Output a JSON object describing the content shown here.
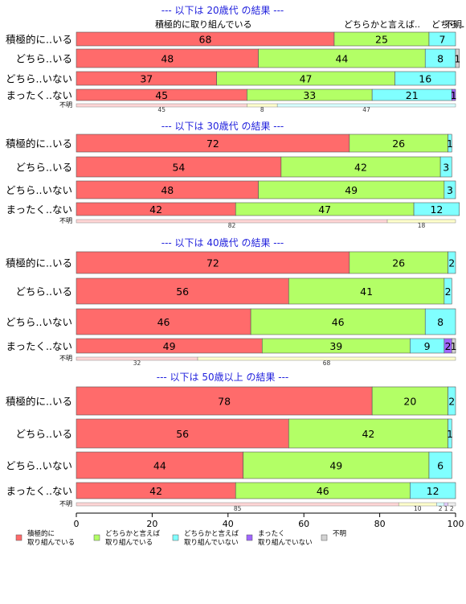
{
  "chart_data": {
    "type": "bar",
    "stacked": true,
    "orientation": "horizontal",
    "xlim": [
      0,
      100
    ],
    "x_ticks": [
      "0",
      "20",
      "40",
      "60",
      "80",
      "100"
    ],
    "series_names": [
      "積極的に取り組んでいる",
      "どちらかと言えば取り組んでいる",
      "どちらかと言えば取り組んでいない",
      "まったく取り組んでいない",
      "不明"
    ],
    "colors": [
      "#ff6b6b",
      "#b3ff66",
      "#80ffff",
      "#a066ff",
      "#d3d3d3"
    ],
    "header_labels": [
      "積極的に取り組んでいる",
      "どちらかと言えば..",
      "どちら..",
      "不明."
    ],
    "legend": [
      {
        "line1": "積極的に",
        "line2": "取り組んでいる",
        "color": "#ff6b6b"
      },
      {
        "line1": "どちらかと言えば",
        "line2": "取り組んでいる",
        "color": "#b3ff66"
      },
      {
        "line1": "どちらかと言えば",
        "line2": "取り組んでいない",
        "color": "#80ffff"
      },
      {
        "line1": "まったく",
        "line2": "取り組んでいない",
        "color": "#a066ff"
      },
      {
        "line1": "不明",
        "line2": "",
        "color": "#d3d3d3"
      }
    ],
    "panels": [
      {
        "title": "--- 以下は 20歳代 の結果 ---",
        "rows": [
          {
            "label": "積極的に..いる",
            "values": [
              68,
              25,
              7,
              0,
              0
            ]
          },
          {
            "label": "どちら..いる",
            "values": [
              48,
              44,
              8,
              0,
              1
            ]
          },
          {
            "label": "どちら..いない",
            "values": [
              37,
              47,
              16,
              0,
              0
            ]
          },
          {
            "label": "まったく..ない",
            "values": [
              45,
              33,
              21,
              1,
              0
            ]
          }
        ],
        "unknown": {
          "label": "不明",
          "values": [
            45,
            8,
            47
          ]
        }
      },
      {
        "title": "--- 以下は 30歳代 の結果 ---",
        "rows": [
          {
            "label": "積極的に..いる",
            "values": [
              72,
              26,
              1,
              0,
              0
            ]
          },
          {
            "label": "どちら..いる",
            "values": [
              54,
              42,
              3,
              0,
              0
            ]
          },
          {
            "label": "どちら..いない",
            "values": [
              48,
              49,
              3,
              0,
              0
            ]
          },
          {
            "label": "まったく..ない",
            "values": [
              42,
              47,
              12,
              0,
              0
            ]
          }
        ],
        "unknown": {
          "label": "不明",
          "values": [
            82,
            18
          ]
        }
      },
      {
        "title": "--- 以下は 40歳代 の結果 ---",
        "rows": [
          {
            "label": "積極的に..いる",
            "values": [
              72,
              26,
              2,
              0,
              0
            ]
          },
          {
            "label": "どちら..いる",
            "values": [
              56,
              41,
              2,
              0,
              0
            ]
          },
          {
            "label": "どちら..いない",
            "values": [
              46,
              46,
              8,
              0,
              0
            ]
          },
          {
            "label": "まったく..ない",
            "values": [
              49,
              39,
              9,
              2,
              1
            ]
          }
        ],
        "unknown": {
          "label": "不明",
          "values": [
            32,
            68
          ]
        }
      },
      {
        "title": "--- 以下は 50歳以上 の結果 ---",
        "rows": [
          {
            "label": "積極的に..いる",
            "values": [
              78,
              20,
              2,
              0,
              0
            ]
          },
          {
            "label": "どちら..いる",
            "values": [
              56,
              42,
              1,
              0,
              0
            ]
          },
          {
            "label": "どちら..いない",
            "values": [
              44,
              49,
              6,
              0,
              0
            ]
          },
          {
            "label": "まったく..ない",
            "values": [
              42,
              46,
              12,
              0,
              0
            ]
          }
        ],
        "unknown": {
          "label": "不明",
          "values": [
            85,
            10,
            2,
            1,
            2
          ]
        }
      }
    ]
  }
}
